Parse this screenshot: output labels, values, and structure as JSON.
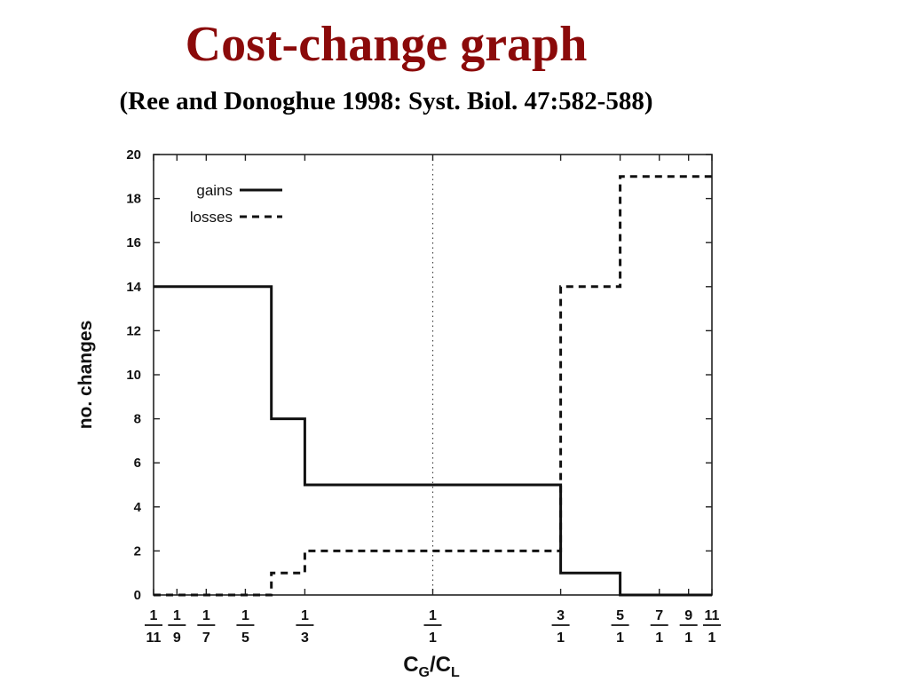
{
  "slide": {
    "title": "Cost-change graph",
    "subtitle": "(Ree and Donoghue 1998: Syst. Biol. 47:582-588)",
    "title_color": "#8b0a0a"
  },
  "chart_data": {
    "type": "line",
    "x_scale": "log",
    "x_tick_labels": [
      {
        "num": "1",
        "den": "11"
      },
      {
        "num": "1",
        "den": "9"
      },
      {
        "num": "1",
        "den": "7"
      },
      {
        "num": "1",
        "den": "5"
      },
      {
        "num": "1",
        "den": "3"
      },
      {
        "num": "1",
        "den": "1"
      },
      {
        "num": "3",
        "den": "1"
      },
      {
        "num": "5",
        "den": "1"
      },
      {
        "num": "7",
        "den": "1"
      },
      {
        "num": "9",
        "den": "1"
      },
      {
        "num": "11",
        "den": "1"
      }
    ],
    "x_tick_values": [
      0.0909,
      0.1111,
      0.1429,
      0.2,
      0.3333,
      1,
      3,
      5,
      7,
      9,
      11
    ],
    "xlim": [
      0.0909,
      11
    ],
    "xlabel": {
      "main": "C",
      "sub1": "G",
      "slash": "/C",
      "sub2": "L"
    },
    "ylabel": "no. changes",
    "ylim": [
      0,
      20
    ],
    "y_ticks": [
      0,
      2,
      4,
      6,
      8,
      10,
      12,
      14,
      16,
      18,
      20
    ],
    "y_tick_labels": [
      "0",
      "2",
      "4",
      "6",
      "8",
      "10",
      "12",
      "14",
      "16",
      "18",
      "20"
    ],
    "reference_line_x": 1,
    "legend": {
      "position": "top-left"
    },
    "series": [
      {
        "name": "gains",
        "style": "solid",
        "points": [
          [
            0.0909,
            14
          ],
          [
            0.25,
            14
          ],
          [
            0.25,
            8
          ],
          [
            0.3333,
            8
          ],
          [
            0.3333,
            5
          ],
          [
            3,
            5
          ],
          [
            3,
            1
          ],
          [
            5,
            1
          ],
          [
            5,
            0
          ],
          [
            11,
            0
          ]
        ]
      },
      {
        "name": "losses",
        "style": "dashed",
        "points": [
          [
            0.0909,
            0
          ],
          [
            0.25,
            0
          ],
          [
            0.25,
            1
          ],
          [
            0.3333,
            1
          ],
          [
            0.3333,
            2
          ],
          [
            3,
            2
          ],
          [
            3,
            14
          ],
          [
            5,
            14
          ],
          [
            5,
            19
          ],
          [
            11,
            19
          ]
        ]
      }
    ]
  }
}
